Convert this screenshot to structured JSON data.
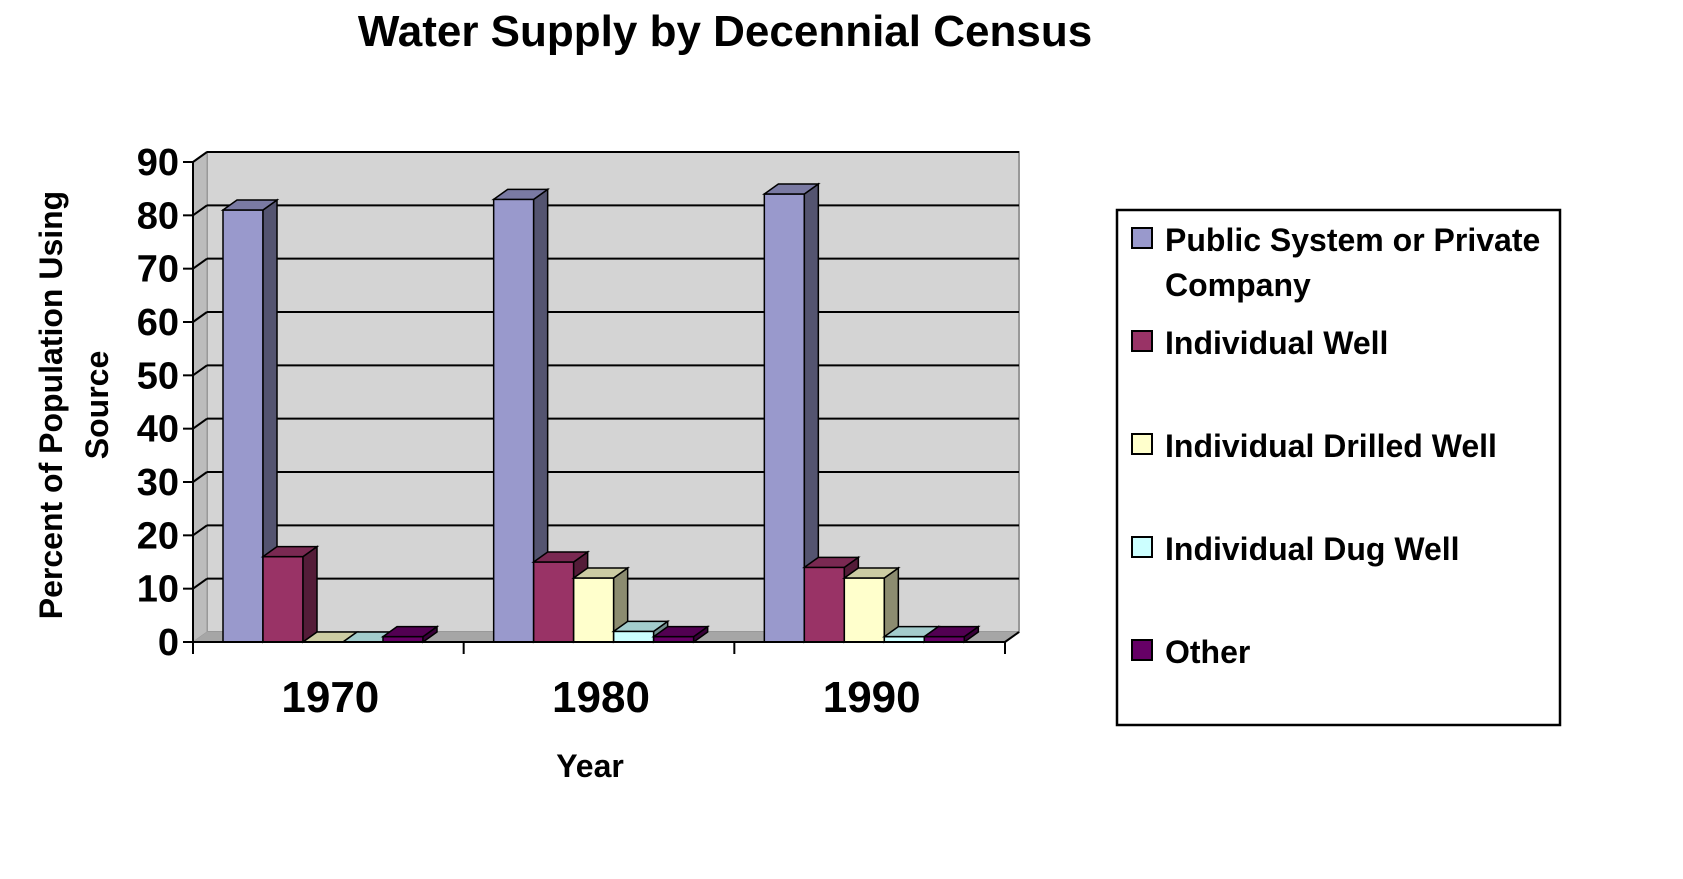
{
  "chart_data": {
    "type": "bar",
    "title": "Water Supply by Decennial Census",
    "xlabel": "Year",
    "ylabel_lines": [
      "Percent of Population Using",
      "Source"
    ],
    "categories": [
      "1970",
      "1980",
      "1990"
    ],
    "ylim": [
      0,
      90
    ],
    "yticks": [
      0,
      10,
      20,
      30,
      40,
      50,
      60,
      70,
      80,
      90
    ],
    "grid": true,
    "legend_position": "right",
    "series": [
      {
        "name": "Public System or Private Company",
        "legend_lines": [
          "Public System or Private",
          "Company"
        ],
        "values": [
          81,
          83,
          84
        ],
        "color": "#9999cc"
      },
      {
        "name": "Individual Well",
        "legend_lines": [
          "Individual Well"
        ],
        "values": [
          16,
          15,
          14
        ],
        "color": "#993366"
      },
      {
        "name": "Individual Drilled Well",
        "legend_lines": [
          "Individual Drilled Well"
        ],
        "values": [
          0,
          12,
          12
        ],
        "color": "#ffffcc"
      },
      {
        "name": "Individual Dug Well",
        "legend_lines": [
          "Individual Dug Well"
        ],
        "values": [
          0,
          2,
          1
        ],
        "color": "#ccffff"
      },
      {
        "name": "Other",
        "legend_lines": [
          "Other"
        ],
        "values": [
          1,
          1,
          1
        ],
        "color": "#660066"
      }
    ]
  }
}
